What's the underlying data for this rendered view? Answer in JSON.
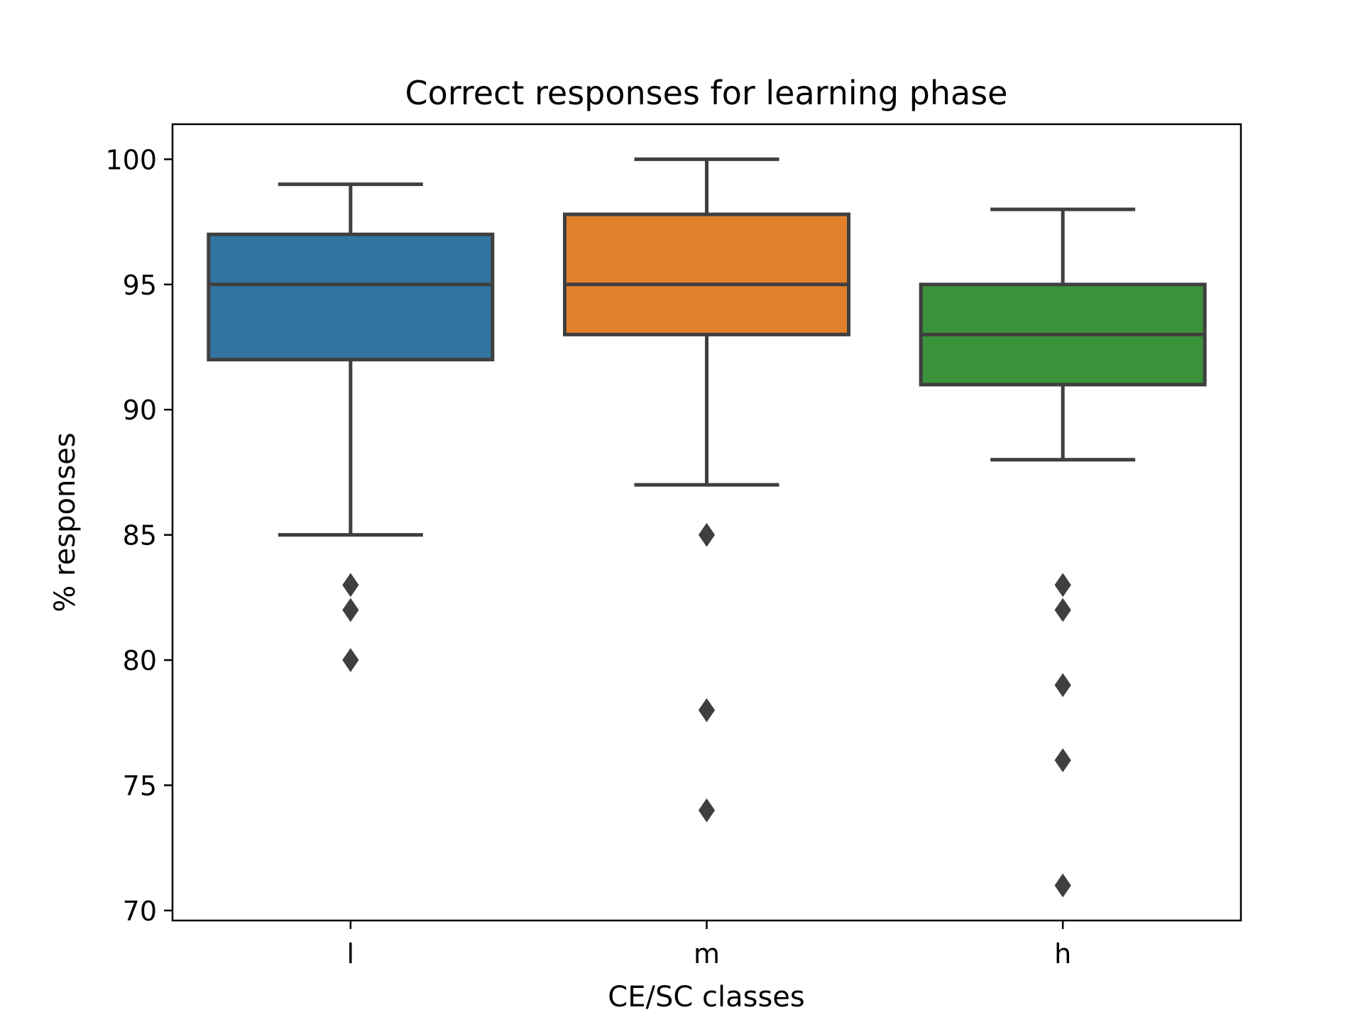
{
  "chart_data": {
    "type": "box",
    "title": "Correct responses for learning phase",
    "xlabel": "CE/SC classes",
    "ylabel": "% responses",
    "ylim": [
      69.6,
      101.4
    ],
    "yticks": [
      70,
      75,
      80,
      85,
      90,
      95,
      100
    ],
    "categories": [
      "l",
      "m",
      "h"
    ],
    "grid": false,
    "legend": "none",
    "boxes": [
      {
        "category": "l",
        "color": "#3274a1",
        "whisker_low": 85,
        "q1": 92,
        "median": 95,
        "q3": 97,
        "whisker_high": 99,
        "outliers": [
          83,
          82,
          80
        ]
      },
      {
        "category": "m",
        "color": "#e1812c",
        "whisker_low": 87,
        "q1": 93,
        "median": 95,
        "q3": 97.8,
        "whisker_high": 100,
        "outliers": [
          85,
          78,
          74
        ]
      },
      {
        "category": "h",
        "color": "#3a923a",
        "whisker_low": 88,
        "q1": 91,
        "median": 93,
        "q3": 95,
        "whisker_high": 98,
        "outliers": [
          83,
          82,
          79,
          76,
          71
        ]
      }
    ],
    "line_color": "#3f3f3f"
  }
}
